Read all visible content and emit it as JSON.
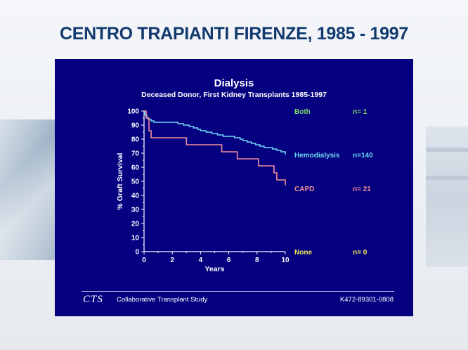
{
  "page_title": "CENTRO TRAPIANTI FIRENZE, 1985 - 1997",
  "footer": {
    "logo": "CTS",
    "label": "Collaborative Transplant Study",
    "code": "K472-89301-0808"
  },
  "chart_data": {
    "type": "line",
    "title": "Dialysis",
    "subtitle": "Deceased Donor, First Kidney Transplants 1985-1997",
    "xlabel": "Years",
    "ylabel": "% Graft Survival",
    "xlim": [
      0,
      10
    ],
    "ylim": [
      0,
      100
    ],
    "xticks": [
      0,
      2,
      4,
      6,
      8,
      10
    ],
    "yticks": [
      0,
      10,
      20,
      30,
      40,
      50,
      60,
      70,
      80,
      90,
      100
    ],
    "grid": false,
    "series": [
      {
        "name": "Both",
        "n_label": "n=   1",
        "color": "#7fd86a",
        "x": [
          0
        ],
        "y": [
          100
        ]
      },
      {
        "name": "Hemodialysis",
        "n_label": "n=140",
        "color": "#6fd8f2",
        "x": [
          0,
          0.05,
          0.1,
          0.2,
          0.3,
          0.5,
          0.7,
          1.0,
          1.5,
          2.0,
          2.4,
          2.8,
          3.2,
          3.5,
          3.8,
          4.0,
          4.4,
          4.8,
          5.2,
          5.6,
          6.0,
          6.4,
          6.8,
          7.0,
          7.3,
          7.6,
          7.9,
          8.2,
          8.5,
          8.8,
          9.1,
          9.4,
          9.7,
          10.0
        ],
        "y": [
          100,
          98,
          97,
          95,
          94,
          93,
          92,
          92,
          92,
          92,
          91,
          90,
          89,
          88,
          87,
          86,
          85,
          84,
          83,
          82,
          82,
          81,
          80,
          79,
          78,
          77,
          76,
          75,
          74,
          74,
          73,
          72,
          71,
          69
        ]
      },
      {
        "name": "CAPD",
        "n_label": "n= 21",
        "color": "#f08c9c",
        "x": [
          0,
          0.15,
          0.35,
          0.5,
          3.0,
          5.5,
          6.6,
          8.1,
          9.2,
          9.4,
          10.0
        ],
        "y": [
          100,
          95,
          86,
          81,
          76,
          71,
          66,
          61,
          56,
          51,
          47
        ]
      },
      {
        "name": "None",
        "n_label": "n=   0",
        "color": "#f2e65a",
        "x": [],
        "y": []
      }
    ]
  }
}
